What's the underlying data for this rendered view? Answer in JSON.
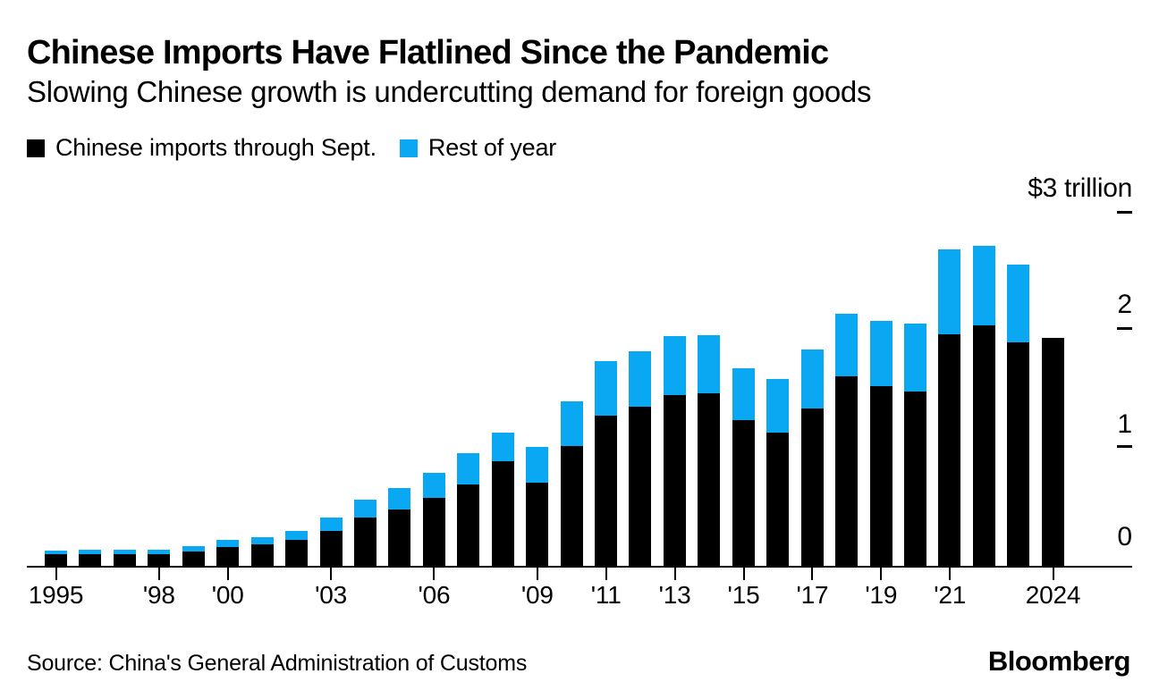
{
  "title": "Chinese Imports Have Flatlined Since the Pandemic",
  "subtitle": "Slowing Chinese growth is undercutting demand for foreign goods",
  "legend": [
    {
      "label": "Chinese imports through Sept.",
      "color": "#000000"
    },
    {
      "label": "Rest of year",
      "color": "#0aa7f2"
    }
  ],
  "y_axis": {
    "top_label": "$3 trillion",
    "tick_2": "2",
    "tick_1": "1",
    "tick_0": "0"
  },
  "footer": {
    "source": "Source: China's General Administration of Customs",
    "brand": "Bloomberg"
  },
  "chart_data": {
    "type": "bar",
    "stacked": true,
    "unit": "USD trillion",
    "ylim": [
      0,
      3
    ],
    "grid": false,
    "legend_position": "top-left",
    "years": [
      1995,
      1996,
      1997,
      1998,
      1999,
      2000,
      2001,
      2002,
      2003,
      2004,
      2005,
      2006,
      2007,
      2008,
      2009,
      2010,
      2011,
      2012,
      2013,
      2014,
      2015,
      2016,
      2017,
      2018,
      2019,
      2020,
      2021,
      2022,
      2023,
      2024
    ],
    "series": [
      {
        "name": "Chinese imports through Sept.",
        "color": "#000000",
        "values": [
          0.1,
          0.1,
          0.1,
          0.1,
          0.12,
          0.16,
          0.18,
          0.22,
          0.3,
          0.41,
          0.48,
          0.58,
          0.69,
          0.89,
          0.71,
          1.02,
          1.28,
          1.35,
          1.45,
          1.47,
          1.24,
          1.13,
          1.34,
          1.61,
          1.53,
          1.48,
          1.97,
          2.04,
          1.9,
          1.94
        ]
      },
      {
        "name": "Rest of year",
        "color": "#0aa7f2",
        "values": [
          0.03,
          0.04,
          0.04,
          0.04,
          0.05,
          0.06,
          0.06,
          0.08,
          0.11,
          0.15,
          0.18,
          0.21,
          0.27,
          0.24,
          0.3,
          0.38,
          0.46,
          0.47,
          0.5,
          0.49,
          0.44,
          0.46,
          0.5,
          0.53,
          0.55,
          0.58,
          0.72,
          0.68,
          0.66,
          0.0
        ]
      }
    ],
    "x_ticks": [
      {
        "label": "1995",
        "year": 1995
      },
      {
        "label": "'98",
        "year": 1998
      },
      {
        "label": "'00",
        "year": 2000
      },
      {
        "label": "'03",
        "year": 2003
      },
      {
        "label": "'06",
        "year": 2006
      },
      {
        "label": "'09",
        "year": 2009
      },
      {
        "label": "'11",
        "year": 2011
      },
      {
        "label": "'13",
        "year": 2013
      },
      {
        "label": "'15",
        "year": 2015
      },
      {
        "label": "'17",
        "year": 2017
      },
      {
        "label": "'19",
        "year": 2019
      },
      {
        "label": "'21",
        "year": 2021
      },
      {
        "label": "2024",
        "year": 2024
      }
    ]
  }
}
